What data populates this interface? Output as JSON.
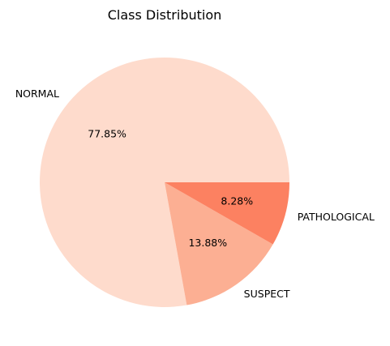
{
  "chart_data": {
    "type": "pie",
    "title": "Class Distribution",
    "categories": [
      "NORMAL",
      "SUSPECT",
      "PATHOLOGICAL"
    ],
    "values": [
      77.85,
      13.88,
      8.28
    ],
    "value_labels": [
      "77.85%",
      "13.88%",
      "8.28%"
    ],
    "colors": [
      "#fedbcc",
      "#fcaf93",
      "#fc8161"
    ],
    "start_angle_deg": 0,
    "direction": "counterclockwise",
    "legend": "none"
  }
}
